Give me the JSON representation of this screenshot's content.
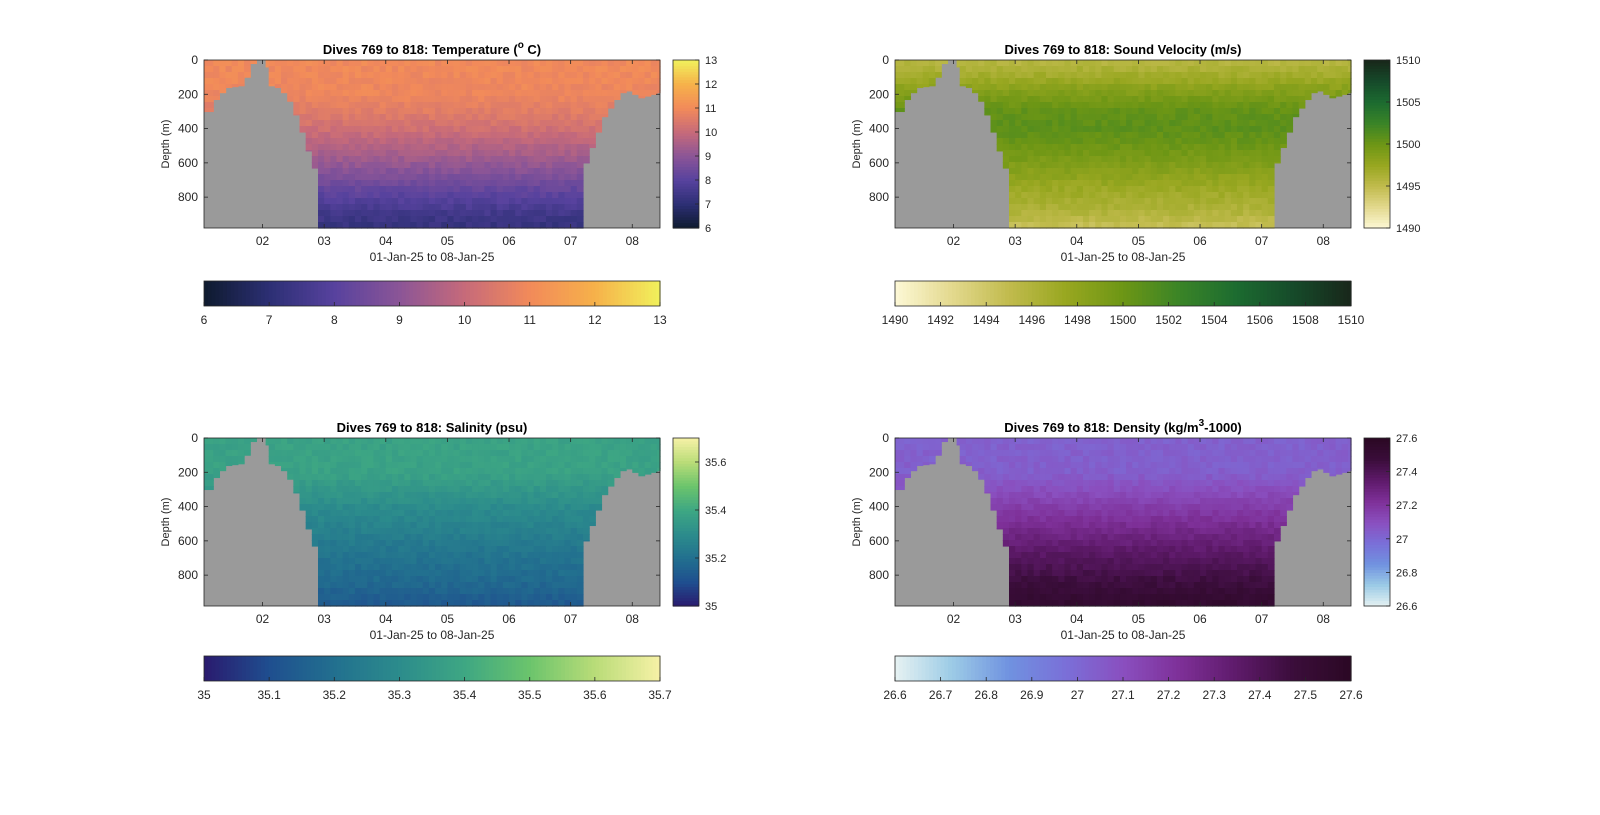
{
  "colors": {
    "land": "#9a9a9a",
    "frame": "#262626",
    "tick_text": "#262626"
  },
  "shared": {
    "x_tick_labels": [
      "02",
      "03",
      "04",
      "05",
      "06",
      "07",
      "08"
    ],
    "x_ticks_days": [
      2,
      3,
      4,
      5,
      6,
      7,
      8
    ],
    "xlim_days": [
      1.05,
      8.45
    ],
    "xlabel": "01-Jan-25 to 08-Jan-25",
    "ylabel": "Depth (m)",
    "y_tick_labels": [
      "0",
      "200",
      "400",
      "600",
      "800"
    ],
    "y_ticks": [
      0,
      200,
      400,
      600,
      800
    ],
    "ylim": [
      0,
      980
    ],
    "glider_profile_days": [
      1.05,
      1.2,
      1.3,
      1.4,
      1.5,
      1.6,
      1.7,
      1.8,
      1.9,
      1.95,
      2.05,
      2.1,
      2.2,
      2.3,
      2.4,
      2.5,
      2.6,
      2.7,
      2.8,
      2.9,
      3.0,
      3.1,
      3.2,
      3.3,
      3.4,
      3.5,
      3.6,
      3.7,
      3.8,
      3.9,
      4.0,
      4.1,
      4.2,
      4.3,
      4.4,
      4.5,
      4.6,
      4.7,
      4.8,
      4.9,
      5.0,
      5.1,
      5.2,
      5.3,
      5.4,
      5.5,
      5.6,
      5.7,
      5.8,
      5.9,
      6.0,
      6.1,
      6.2,
      6.3,
      6.4,
      6.5,
      6.6,
      6.7,
      6.8,
      6.9,
      7.0,
      7.1,
      7.2,
      7.3,
      7.4,
      7.5,
      7.6,
      7.7,
      7.8,
      7.9,
      8.0,
      8.1,
      8.2,
      8.3,
      8.4,
      8.45
    ],
    "max_depth_m": [
      300,
      230,
      190,
      160,
      155,
      150,
      100,
      20,
      0,
      0,
      40,
      150,
      160,
      190,
      240,
      320,
      420,
      530,
      630,
      980,
      980,
      980,
      980,
      980,
      980,
      980,
      980,
      980,
      980,
      980,
      980,
      980,
      980,
      980,
      980,
      980,
      980,
      980,
      980,
      980,
      980,
      980,
      980,
      980,
      980,
      980,
      980,
      980,
      980,
      980,
      980,
      980,
      980,
      980,
      980,
      980,
      980,
      980,
      980,
      980,
      980,
      980,
      600,
      510,
      420,
      330,
      280,
      230,
      190,
      180,
      200,
      220,
      210,
      200,
      190,
      200
    ]
  },
  "chart_data": [
    {
      "type": "heatmap",
      "title": "Dives 769 to 818: Temperature (",
      "title_sup": "o",
      "title_end": " C)",
      "xlabel": "01-Jan-25 to 08-Jan-25",
      "ylabel": "Depth (m)",
      "x_tick_labels": [
        "02",
        "03",
        "04",
        "05",
        "06",
        "07",
        "08"
      ],
      "ylim": [
        0,
        980
      ],
      "y_reversed": true,
      "colorbar_range": [
        6,
        13
      ],
      "colorbar_ticks": [
        "6",
        "7",
        "8",
        "9",
        "10",
        "11",
        "12",
        "13"
      ],
      "h_colorbar_ticks": [
        "6",
        "7",
        "8",
        "9",
        "10",
        "11",
        "12",
        "13"
      ],
      "colormap": [
        "#0e1a2e",
        "#2c2f74",
        "#57429e",
        "#8b5597",
        "#c66a7a",
        "#f28a5a",
        "#f6b14a",
        "#f1f15c"
      ],
      "depth_profile": {
        "depth_m": [
          0,
          200,
          300,
          400,
          500,
          600,
          700,
          800,
          900,
          980
        ],
        "value": [
          11.0,
          10.9,
          10.6,
          10.2,
          9.7,
          9.2,
          8.6,
          8.0,
          7.5,
          7.2
        ]
      }
    },
    {
      "type": "heatmap",
      "title": "Dives 769 to 818: Sound Velocity (m/s)",
      "title_sup": "",
      "title_end": "",
      "xlabel": "01-Jan-25 to 08-Jan-25",
      "ylabel": "Depth (m)",
      "x_tick_labels": [
        "02",
        "03",
        "04",
        "05",
        "06",
        "07",
        "08"
      ],
      "ylim": [
        0,
        980
      ],
      "y_reversed": true,
      "colorbar_range": [
        1490,
        1510
      ],
      "colorbar_ticks": [
        "1490",
        "1495",
        "1500",
        "1505",
        "1510"
      ],
      "h_colorbar_ticks": [
        "1490",
        "1492",
        "1494",
        "1496",
        "1498",
        "1500",
        "1502",
        "1504",
        "1506",
        "1508",
        "1510"
      ],
      "colormap": [
        "#fdf8d6",
        "#e3d98e",
        "#c1bb4d",
        "#98a720",
        "#6d9615",
        "#3a8427",
        "#1c6b30",
        "#164a2a",
        "#18271a"
      ],
      "depth_profile": {
        "depth_m": [
          0,
          100,
          200,
          300,
          400,
          500,
          600,
          700,
          800,
          900,
          980
        ],
        "value": [
          1495.5,
          1497.0,
          1499.0,
          1500.5,
          1500.8,
          1500.0,
          1499.0,
          1497.8,
          1496.8,
          1495.8,
          1494.5
        ]
      }
    },
    {
      "type": "heatmap",
      "title": "Dives 769 to 818: Salinity (psu)",
      "title_sup": "",
      "title_end": "",
      "xlabel": "01-Jan-25 to 08-Jan-25",
      "ylabel": "Depth (m)",
      "x_tick_labels": [
        "02",
        "03",
        "04",
        "05",
        "06",
        "07",
        "08"
      ],
      "ylim": [
        0,
        980
      ],
      "y_reversed": true,
      "colorbar_range": [
        35,
        35.7
      ],
      "colorbar_ticks": [
        "35",
        "35.2",
        "35.4",
        "35.6"
      ],
      "colorbar_tick_values": [
        35,
        35.2,
        35.4,
        35.6
      ],
      "h_colorbar_ticks": [
        "35",
        "35.1",
        "35.2",
        "35.3",
        "35.4",
        "35.5",
        "35.6",
        "35.7"
      ],
      "colormap": [
        "#2a1a6e",
        "#1f4e8f",
        "#22708f",
        "#2c8c8c",
        "#3ea783",
        "#6bc46c",
        "#b9dc78",
        "#f6f1a6"
      ],
      "depth_profile": {
        "depth_m": [
          0,
          200,
          300,
          400,
          500,
          600,
          700,
          800,
          900,
          980
        ],
        "value": [
          35.38,
          35.38,
          35.34,
          35.3,
          35.27,
          35.24,
          35.21,
          35.19,
          35.16,
          35.13
        ]
      }
    },
    {
      "type": "heatmap",
      "title": "Dives 769 to 818: Density (kg/m",
      "title_sup": "3",
      "title_end": "-1000)",
      "xlabel": "01-Jan-25 to 08-Jan-25",
      "ylabel": "Depth (m)",
      "x_tick_labels": [
        "02",
        "03",
        "04",
        "05",
        "06",
        "07",
        "08"
      ],
      "ylim": [
        0,
        980
      ],
      "y_reversed": true,
      "colorbar_range": [
        26.6,
        27.6
      ],
      "colorbar_ticks": [
        "26.6",
        "26.8",
        "27",
        "27.2",
        "27.4",
        "27.6"
      ],
      "h_colorbar_ticks": [
        "26.6",
        "26.7",
        "26.8",
        "26.9",
        "27",
        "27.1",
        "27.2",
        "27.3",
        "27.4",
        "27.5",
        "27.6"
      ],
      "colormap": [
        "#e6f2f2",
        "#9ccbe6",
        "#7092e0",
        "#7a6fd8",
        "#8a4fbf",
        "#7e3098",
        "#5e1a6a",
        "#3a0d3a",
        "#2b0824"
      ],
      "depth_profile": {
        "depth_m": [
          0,
          200,
          300,
          400,
          500,
          600,
          700,
          800,
          900,
          980
        ],
        "value": [
          27.03,
          27.04,
          27.1,
          27.17,
          27.24,
          27.31,
          27.38,
          27.44,
          27.5,
          27.54
        ]
      }
    }
  ]
}
